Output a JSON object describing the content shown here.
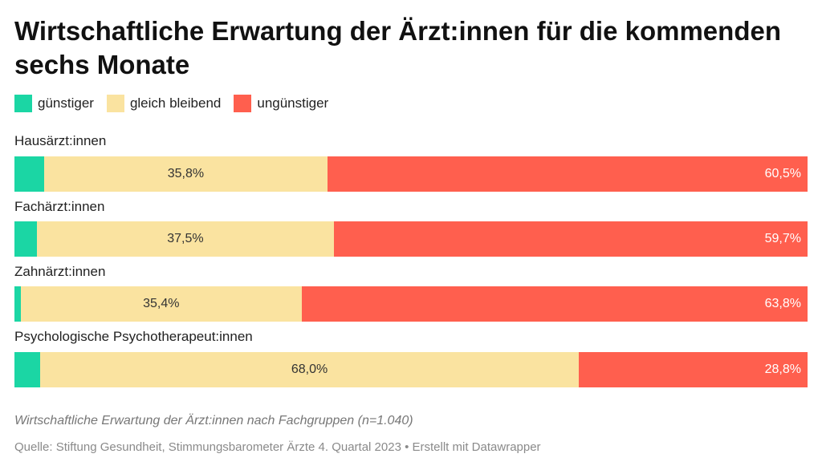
{
  "title": "Wirtschaftliche Erwartung der Ärzt:innen für die kommenden sechs Monate",
  "legend": [
    {
      "label": "günstiger",
      "color": "#1bd6a4"
    },
    {
      "label": "gleich bleibend",
      "color": "#fae3a0"
    },
    {
      "label": "ungünstiger",
      "color": "#ff5f4e"
    }
  ],
  "chart_data": {
    "type": "bar",
    "orientation": "horizontal",
    "stacked": true,
    "categories": [
      "Hausärzt:innen",
      "Fachärzt:innen",
      "Zahnärzt:innen",
      "Psychologische Psychotherapeut:innen"
    ],
    "series": [
      {
        "name": "günstiger",
        "values": [
          3.7,
          2.8,
          0.8,
          3.2
        ],
        "labels": [
          "",
          "",
          "",
          ""
        ]
      },
      {
        "name": "gleich bleibend",
        "values": [
          35.8,
          37.5,
          35.4,
          68.0
        ],
        "labels": [
          "35,8%",
          "37,5%",
          "35,4%",
          "68,0%"
        ]
      },
      {
        "name": "ungünstiger",
        "values": [
          60.5,
          59.7,
          63.8,
          28.8
        ],
        "labels": [
          "60,5%",
          "59,7%",
          "63,8%",
          "28,8%"
        ]
      }
    ],
    "legend_position": "top-left",
    "grid": false
  },
  "notes": "Wirtschaftliche Erwartung der Ärzt:innen nach Fachgruppen (n=1.040)",
  "source": "Quelle: Stiftung Gesundheit, Stimmungsbarometer Ärzte 4. Quartal 2023 • Erstellt mit Datawrapper"
}
